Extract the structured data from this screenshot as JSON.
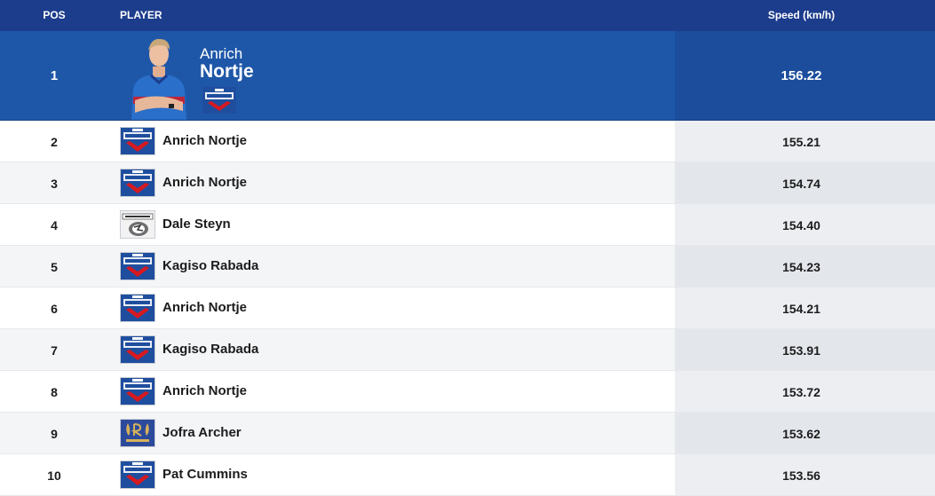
{
  "header": {
    "pos": "POS",
    "player": "PLAYER",
    "speed": "Speed (km/h)"
  },
  "leader": {
    "pos": "1",
    "first_name": "Anrich",
    "last_name": "Nortje",
    "speed": "156.22",
    "team_icon": "delhi-capitals-logo"
  },
  "rows": [
    {
      "pos": "2",
      "name": "Anrich Nortje",
      "speed": "155.21",
      "team_icon": "delhi-capitals-logo"
    },
    {
      "pos": "3",
      "name": "Anrich Nortje",
      "speed": "154.74",
      "team_icon": "delhi-capitals-logo"
    },
    {
      "pos": "4",
      "name": "Dale Steyn",
      "speed": "154.40",
      "team_icon": "deccan-chargers-logo"
    },
    {
      "pos": "5",
      "name": "Kagiso Rabada",
      "speed": "154.23",
      "team_icon": "delhi-capitals-logo"
    },
    {
      "pos": "6",
      "name": "Anrich Nortje",
      "speed": "154.21",
      "team_icon": "delhi-capitals-logo"
    },
    {
      "pos": "7",
      "name": "Kagiso Rabada",
      "speed": "153.91",
      "team_icon": "delhi-capitals-logo"
    },
    {
      "pos": "8",
      "name": "Anrich Nortje",
      "speed": "153.72",
      "team_icon": "delhi-capitals-logo"
    },
    {
      "pos": "9",
      "name": "Jofra Archer",
      "speed": "153.62",
      "team_icon": "rajasthan-royals-logo"
    },
    {
      "pos": "10",
      "name": "Pat Cummins",
      "speed": "153.56",
      "team_icon": "delhi-capitals-logo"
    }
  ],
  "colors": {
    "header_bg": "#1c3c8c",
    "leader_bg": "#1f57a8",
    "dc_blue": "#1f4e9e",
    "dc_red": "#d71920"
  }
}
